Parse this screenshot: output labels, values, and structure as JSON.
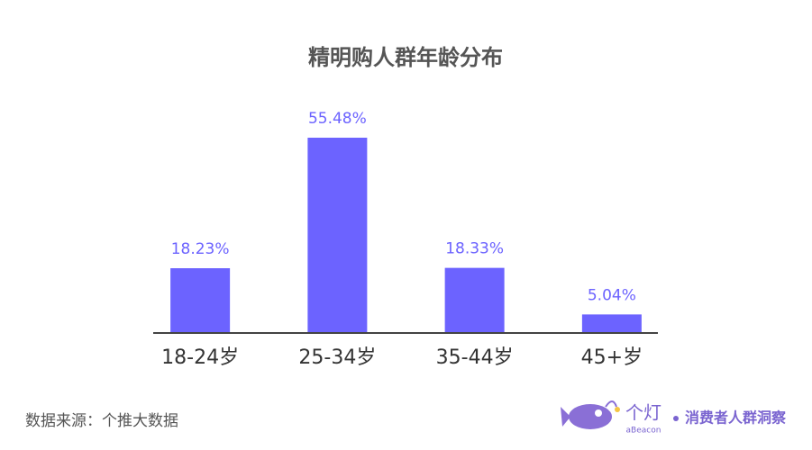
{
  "chart_data": {
    "type": "bar",
    "title": "精明购人群年龄分布",
    "categories": [
      "18-24岁",
      "25-34岁",
      "35-44岁",
      "45+岁"
    ],
    "values": [
      18.23,
      55.48,
      18.33,
      5.04
    ],
    "value_labels": [
      "18.23%",
      "55.48%",
      "18.33%",
      "5.04%"
    ],
    "color": "#6c63ff"
  },
  "footer": {
    "source": "数据来源：个推大数据",
    "logo_text": "个灯",
    "logo_subtext": "aBeacon",
    "tagline": "消费者人群洞察"
  }
}
